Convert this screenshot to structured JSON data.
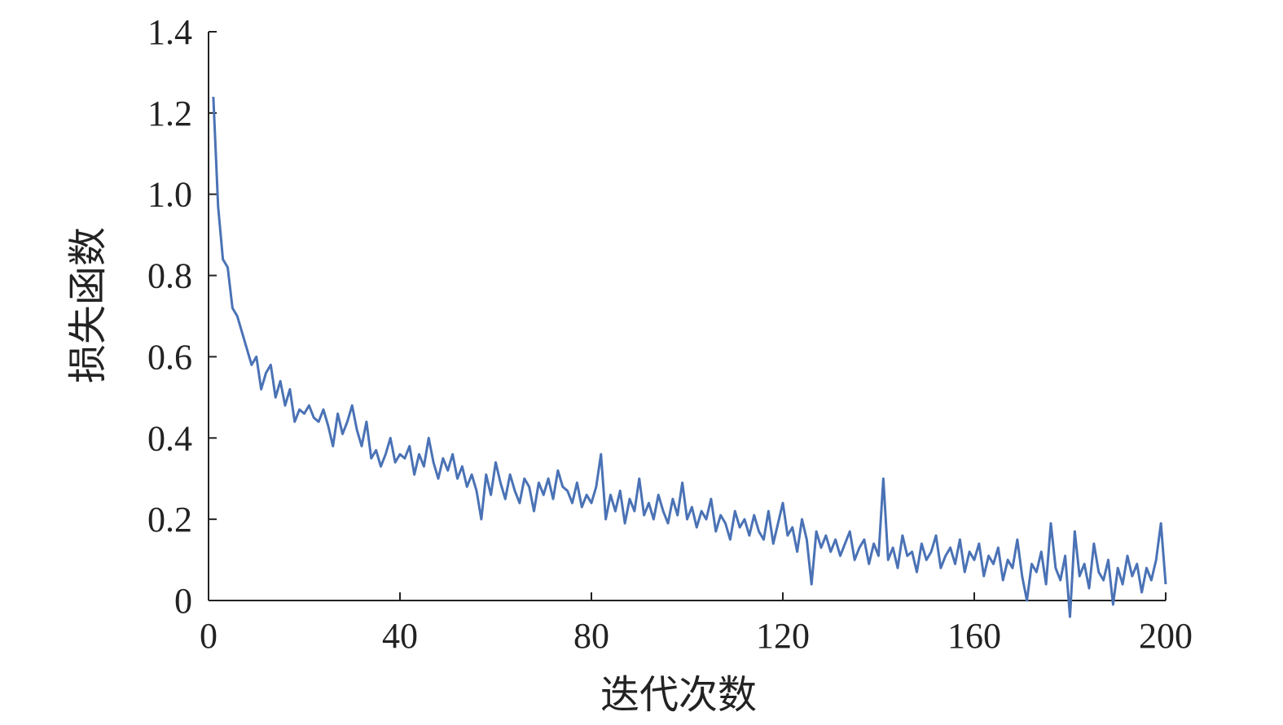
{
  "chart_data": {
    "type": "line",
    "x_label": "迭代次数",
    "y_label": "损失函数",
    "xlim": [
      0,
      200
    ],
    "ylim": [
      0,
      1.4
    ],
    "xticks": [
      0,
      40,
      80,
      120,
      160,
      200
    ],
    "yticks": [
      0,
      0.2,
      0.4,
      0.6,
      0.8,
      {
        "value": 1,
        "label": "1.0"
      },
      1.2,
      1.4
    ],
    "grid": false,
    "x": [
      1,
      2,
      3,
      4,
      5,
      6,
      7,
      8,
      9,
      10,
      11,
      12,
      13,
      14,
      15,
      16,
      17,
      18,
      19,
      20,
      21,
      22,
      23,
      24,
      25,
      26,
      27,
      28,
      29,
      30,
      31,
      32,
      33,
      34,
      35,
      36,
      37,
      38,
      39,
      40,
      41,
      42,
      43,
      44,
      45,
      46,
      47,
      48,
      49,
      50,
      51,
      52,
      53,
      54,
      55,
      56,
      57,
      58,
      59,
      60,
      61,
      62,
      63,
      64,
      65,
      66,
      67,
      68,
      69,
      70,
      71,
      72,
      73,
      74,
      75,
      76,
      77,
      78,
      79,
      80,
      81,
      82,
      83,
      84,
      85,
      86,
      87,
      88,
      89,
      90,
      91,
      92,
      93,
      94,
      95,
      96,
      97,
      98,
      99,
      100,
      101,
      102,
      103,
      104,
      105,
      106,
      107,
      108,
      109,
      110,
      111,
      112,
      113,
      114,
      115,
      116,
      117,
      118,
      119,
      120,
      121,
      122,
      123,
      124,
      125,
      126,
      127,
      128,
      129,
      130,
      131,
      132,
      133,
      134,
      135,
      136,
      137,
      138,
      139,
      140,
      141,
      142,
      143,
      144,
      145,
      146,
      147,
      148,
      149,
      150,
      151,
      152,
      153,
      154,
      155,
      156,
      157,
      158,
      159,
      160,
      161,
      162,
      163,
      164,
      165,
      166,
      167,
      168,
      169,
      170,
      171,
      172,
      173,
      174,
      175,
      176,
      177,
      178,
      179,
      180,
      181,
      182,
      183,
      184,
      185,
      186,
      187,
      188,
      189,
      190,
      191,
      192,
      193,
      194,
      195,
      196,
      197,
      198,
      199,
      200
    ],
    "series": [
      {
        "color": "#4a72b5",
        "values": [
          1.24,
          0.97,
          0.84,
          0.82,
          0.72,
          0.7,
          0.66,
          0.62,
          0.58,
          0.6,
          0.52,
          0.56,
          0.58,
          0.5,
          0.54,
          0.48,
          0.52,
          0.44,
          0.47,
          0.46,
          0.48,
          0.45,
          0.44,
          0.47,
          0.43,
          0.38,
          0.46,
          0.41,
          0.44,
          0.48,
          0.42,
          0.38,
          0.44,
          0.35,
          0.37,
          0.33,
          0.36,
          0.4,
          0.34,
          0.36,
          0.35,
          0.38,
          0.31,
          0.36,
          0.33,
          0.4,
          0.34,
          0.3,
          0.35,
          0.32,
          0.36,
          0.3,
          0.33,
          0.28,
          0.31,
          0.27,
          0.2,
          0.31,
          0.26,
          0.34,
          0.29,
          0.25,
          0.31,
          0.27,
          0.24,
          0.3,
          0.28,
          0.22,
          0.29,
          0.26,
          0.3,
          0.25,
          0.32,
          0.28,
          0.27,
          0.24,
          0.29,
          0.23,
          0.26,
          0.24,
          0.28,
          0.36,
          0.2,
          0.26,
          0.22,
          0.27,
          0.19,
          0.25,
          0.22,
          0.3,
          0.21,
          0.24,
          0.2,
          0.26,
          0.22,
          0.19,
          0.25,
          0.21,
          0.29,
          0.2,
          0.23,
          0.18,
          0.22,
          0.2,
          0.25,
          0.17,
          0.21,
          0.19,
          0.15,
          0.22,
          0.18,
          0.2,
          0.16,
          0.21,
          0.17,
          0.15,
          0.22,
          0.14,
          0.19,
          0.24,
          0.16,
          0.18,
          0.12,
          0.2,
          0.15,
          0.04,
          0.17,
          0.13,
          0.16,
          0.12,
          0.15,
          0.11,
          0.14,
          0.17,
          0.1,
          0.13,
          0.15,
          0.09,
          0.14,
          0.11,
          0.3,
          0.1,
          0.13,
          0.08,
          0.16,
          0.11,
          0.12,
          0.07,
          0.14,
          0.1,
          0.12,
          0.16,
          0.08,
          0.11,
          0.13,
          0.09,
          0.15,
          0.07,
          0.12,
          0.1,
          0.14,
          0.06,
          0.11,
          0.09,
          0.13,
          0.05,
          0.1,
          0.08,
          0.15,
          0.06,
          0.0,
          0.09,
          0.07,
          0.12,
          0.04,
          0.19,
          0.08,
          0.05,
          0.11,
          -0.04,
          0.17,
          0.06,
          0.09,
          0.03,
          0.14,
          0.07,
          0.05,
          0.1,
          -0.01,
          0.08,
          0.04,
          0.11,
          0.06,
          0.09,
          0.02,
          0.08,
          0.05,
          0.1,
          0.19,
          0.04
        ]
      }
    ]
  }
}
